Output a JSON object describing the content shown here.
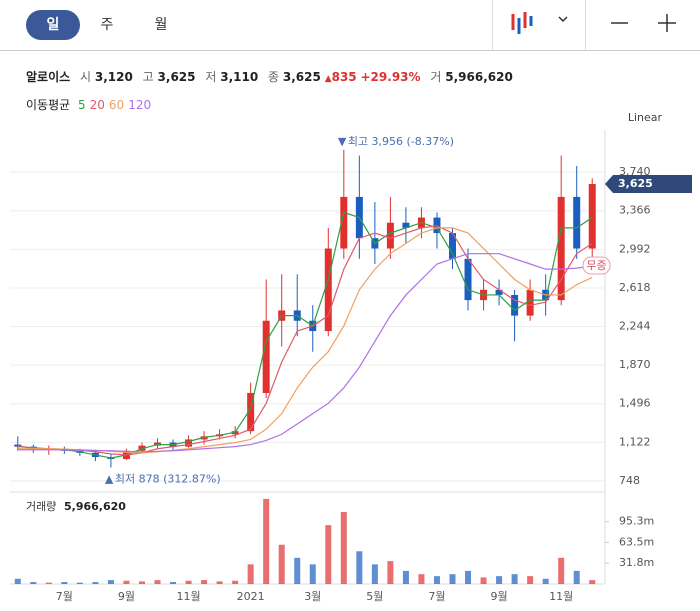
{
  "toolbar": {
    "tabs": [
      "일",
      "주",
      "월"
    ]
  },
  "quote": {
    "name": "알로이스",
    "items": [
      {
        "label": "시",
        "value": "3,120"
      },
      {
        "label": "고",
        "value": "3,625"
      },
      {
        "label": "저",
        "value": "3,110"
      },
      {
        "label": "종",
        "value": "3,625"
      }
    ],
    "change": "835",
    "change_pct": "+29.93%",
    "volume_label": "거",
    "volume": "5,966,620"
  },
  "chart_data": {
    "type": "candlestick",
    "categories": [
      null,
      null,
      null,
      "7월",
      null,
      null,
      null,
      "9월",
      null,
      null,
      null,
      "11월",
      null,
      null,
      null,
      "2021",
      null,
      null,
      null,
      "3월",
      null,
      null,
      null,
      "5월",
      null,
      null,
      null,
      "7월",
      null,
      null,
      null,
      "9월",
      null,
      null,
      null,
      "11월",
      null,
      null
    ],
    "open": [
      1100,
      1080,
      1050,
      1060,
      1040,
      1020,
      980,
      960,
      1040,
      1090,
      1120,
      1080,
      1150,
      1180,
      1200,
      1230,
      1600,
      2300,
      2400,
      2300,
      2200,
      3000,
      3500,
      3100,
      3000,
      3250,
      3200,
      3300,
      3150,
      2900,
      2500,
      2600,
      2550,
      2350,
      2600,
      2500,
      3500,
      3000
    ],
    "high": [
      1180,
      1100,
      1090,
      1080,
      1060,
      1050,
      1010,
      1060,
      1120,
      1160,
      1150,
      1190,
      1230,
      1250,
      1280,
      1700,
      2700,
      2750,
      2750,
      2450,
      3200,
      3956,
      3900,
      3450,
      3500,
      3400,
      3400,
      3350,
      3200,
      3000,
      2700,
      2700,
      2600,
      2700,
      2750,
      3900,
      3800,
      3680
    ],
    "low": [
      1040,
      1020,
      1000,
      1010,
      990,
      940,
      878,
      950,
      1020,
      1060,
      1050,
      1070,
      1100,
      1150,
      1160,
      1200,
      1550,
      2050,
      2150,
      2000,
      2150,
      2900,
      2900,
      2850,
      2900,
      3050,
      3100,
      3000,
      2800,
      2400,
      2400,
      2450,
      2100,
      2300,
      2350,
      2450,
      2900,
      2800
    ],
    "close": [
      1080,
      1050,
      1060,
      1040,
      1020,
      980,
      960,
      1040,
      1090,
      1120,
      1080,
      1150,
      1180,
      1200,
      1230,
      1600,
      2300,
      2400,
      2300,
      2200,
      3000,
      3500,
      3100,
      3000,
      3250,
      3200,
      3300,
      3150,
      2900,
      2500,
      2600,
      2550,
      2350,
      2600,
      2500,
      3500,
      3000,
      3625
    ],
    "up_color": "#e0312f",
    "down_color": "#1a5fc0",
    "legend_title": "이동평균",
    "series": [
      {
        "name": "5",
        "color": "#2ea043",
        "values": [
          1090,
          1060,
          1055,
          1050,
          1030,
          1000,
          970,
          1000,
          1060,
          1100,
          1100,
          1130,
          1170,
          1190,
          1220,
          1450,
          2100,
          2350,
          2350,
          2250,
          2700,
          3350,
          3300,
          3050,
          3150,
          3200,
          3250,
          3200,
          2950,
          2600,
          2550,
          2550,
          2400,
          2500,
          2500,
          3200,
          3200,
          3300
        ]
      },
      {
        "name": "20",
        "color": "#e05a6a",
        "values": [
          1080,
          1070,
          1060,
          1055,
          1045,
          1030,
          1010,
          1000,
          1020,
          1060,
          1080,
          1100,
          1130,
          1160,
          1190,
          1250,
          1500,
          1900,
          2200,
          2250,
          2350,
          2800,
          3100,
          3150,
          3100,
          3150,
          3200,
          3220,
          3150,
          2900,
          2700,
          2600,
          2500,
          2450,
          2480,
          2700,
          2950,
          3050
        ]
      },
      {
        "name": "60",
        "color": "#f0a060",
        "values": [
          1060,
          1060,
          1060,
          1055,
          1050,
          1045,
          1035,
          1025,
          1020,
          1030,
          1045,
          1060,
          1080,
          1100,
          1120,
          1150,
          1250,
          1400,
          1650,
          1850,
          2000,
          2250,
          2600,
          2800,
          2950,
          3050,
          3150,
          3200,
          3200,
          3150,
          3000,
          2850,
          2700,
          2600,
          2550,
          2550,
          2650,
          2720
        ]
      },
      {
        "name": "120",
        "color": "#b070e8",
        "values": [
          1050,
          1050,
          1050,
          1050,
          1045,
          1040,
          1040,
          1035,
          1030,
          1035,
          1040,
          1050,
          1060,
          1070,
          1080,
          1100,
          1140,
          1200,
          1300,
          1400,
          1500,
          1650,
          1850,
          2100,
          2350,
          2550,
          2700,
          2850,
          2900,
          2950,
          2950,
          2950,
          2900,
          2850,
          2800,
          2800,
          2810,
          2830
        ]
      }
    ],
    "ylim": [
      660,
      4100
    ],
    "yticks": [
      {
        "value": 3740,
        "label": "3,740"
      },
      {
        "value": 3366,
        "label": "3,366"
      },
      {
        "value": 2992,
        "label": "2,992"
      },
      {
        "value": 2618,
        "label": "2,618"
      },
      {
        "value": 2244,
        "label": "2,244"
      },
      {
        "value": 1870,
        "label": "1,870"
      },
      {
        "value": 1496,
        "label": "1,496"
      },
      {
        "value": 1122,
        "label": "1,122"
      },
      748
    ],
    "grid": true,
    "scale_label": "Linear",
    "annotations": [
      {
        "text": "최고 3,956 (-8.37%)"
      },
      {
        "text": "최저 878 (312.87%)"
      }
    ],
    "current_price": {
      "value": 3625,
      "label": "3,625"
    },
    "badge": "무증",
    "volume": {
      "title": "거래량",
      "last_label": "5,966,620",
      "values": [
        8000000,
        3000000,
        2000000,
        3000000,
        2000000,
        3000000,
        6000000,
        5000000,
        4000000,
        6000000,
        3000000,
        5000000,
        6000000,
        4000000,
        5000000,
        30000000,
        130000000,
        60000000,
        40000000,
        30000000,
        90000000,
        110000000,
        50000000,
        30000000,
        35000000,
        20000000,
        15000000,
        12000000,
        15000000,
        20000000,
        10000000,
        12000000,
        15000000,
        12000000,
        8000000,
        40000000,
        20000000,
        5966620
      ],
      "ylim": [
        0,
        136000000
      ],
      "yticks": [
        {
          "value": 95300000,
          "label": "95.3m"
        },
        {
          "value": 63500000,
          "label": "63.5m"
        },
        {
          "value": 31800000,
          "label": "31.8m"
        }
      ]
    }
  }
}
